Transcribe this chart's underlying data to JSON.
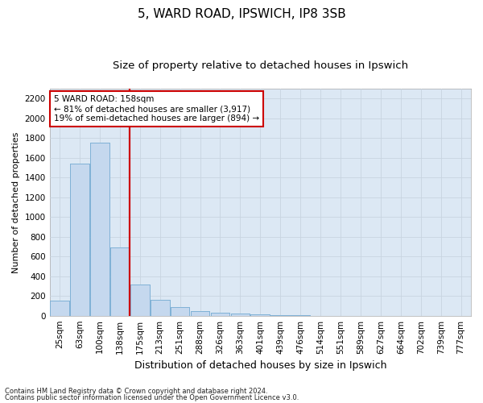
{
  "title1": "5, WARD ROAD, IPSWICH, IP8 3SB",
  "title2": "Size of property relative to detached houses in Ipswich",
  "xlabel": "Distribution of detached houses by size in Ipswich",
  "ylabel": "Number of detached properties",
  "footnote1": "Contains HM Land Registry data © Crown copyright and database right 2024.",
  "footnote2": "Contains public sector information licensed under the Open Government Licence v3.0.",
  "categories": [
    "25sqm",
    "63sqm",
    "100sqm",
    "138sqm",
    "175sqm",
    "213sqm",
    "251sqm",
    "288sqm",
    "326sqm",
    "363sqm",
    "401sqm",
    "439sqm",
    "476sqm",
    "514sqm",
    "551sqm",
    "589sqm",
    "627sqm",
    "664sqm",
    "702sqm",
    "739sqm",
    "777sqm"
  ],
  "values": [
    155,
    1540,
    1750,
    690,
    315,
    160,
    85,
    45,
    28,
    18,
    10,
    5,
    3,
    0,
    0,
    0,
    0,
    0,
    0,
    0,
    0
  ],
  "bar_color": "#c5d8ee",
  "bar_edge_color": "#7aaed4",
  "vline_x": 3.5,
  "vline_color": "#cc0000",
  "annotation_text": "5 WARD ROAD: 158sqm\n← 81% of detached houses are smaller (3,917)\n19% of semi-detached houses are larger (894) →",
  "annotation_box_color": "#ffffff",
  "annotation_box_edge": "#cc0000",
  "ylim": [
    0,
    2300
  ],
  "yticks": [
    0,
    200,
    400,
    600,
    800,
    1000,
    1200,
    1400,
    1600,
    1800,
    2000,
    2200
  ],
  "grid_color": "#c8d4e0",
  "background_color": "#dce8f4",
  "title1_fontsize": 11,
  "title2_fontsize": 9.5,
  "xlabel_fontsize": 9,
  "ylabel_fontsize": 8,
  "tick_fontsize": 7.5,
  "annot_fontsize": 7.5,
  "footnote_fontsize": 6
}
